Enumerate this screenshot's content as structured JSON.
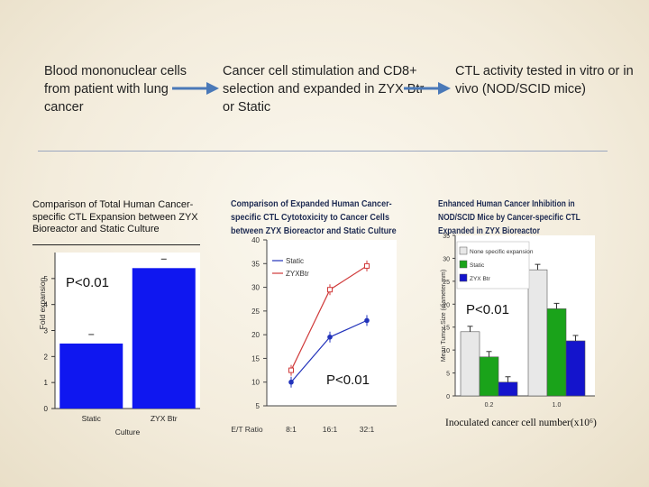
{
  "flow": {
    "step1": "Blood mononuclear cells  from patient with lung cancer",
    "step2": "Cancer cell stimulation and CD8+ selection and expanded in ZYX Btr or Static",
    "step3": "CTL activity tested in vitro or in vivo (NOD/SCID mice)",
    "arrow_color": "#4a79b8"
  },
  "chart_data": [
    {
      "type": "bar",
      "title": "Comparison of Total Human Cancer-specific CTL Expansion between ZYX Bioreactor and Static Culture",
      "categories": [
        "Static",
        "ZYX Btr"
      ],
      "values": [
        2.5,
        5.4
      ],
      "xlabel": "Culture",
      "ylabel": "Fold expansion",
      "ylim": [
        0,
        6
      ],
      "yticks": [
        "0",
        "1",
        "2",
        "3",
        "4",
        "5"
      ],
      "bar_color": "#0f17f0",
      "annotation": "P<0.01"
    },
    {
      "type": "line",
      "title": "Comparison of Expanded Human Cancer-specific CTL Cytotoxicity to Cancer Cells between ZYX Bioreactor and Static Culture",
      "categories": [
        "8:1",
        "16:1",
        "32:1"
      ],
      "xlabel": "E/T Ratio",
      "ylim": [
        5,
        40
      ],
      "yticks": [
        "5",
        "10",
        "15",
        "20",
        "25",
        "30",
        "35",
        "40"
      ],
      "series": [
        {
          "name": "Static",
          "values": [
            10,
            19.5,
            23
          ],
          "color": "#2233bb"
        },
        {
          "name": "ZYXBtr",
          "values": [
            12.5,
            29.5,
            34.5
          ],
          "color": "#d03a3a"
        }
      ],
      "annotation": "P<0.01"
    },
    {
      "type": "bar",
      "title": "Enhanced Human Cancer Inhibition in NOD/SCID Mice by Cancer-specific CTL Expanded in ZYX Bioreactor",
      "categories": [
        "0.2",
        "1.0"
      ],
      "xlabel": "Inoculated cancer cell number(x10⁶)",
      "ylabel": "Mean Tumor Size (diameter mm)",
      "ylim": [
        0,
        35
      ],
      "yticks": [
        "0",
        "5",
        "10",
        "15",
        "20",
        "25",
        "30",
        "35"
      ],
      "series": [
        {
          "name": "None specific expansion",
          "values": [
            14,
            27.5
          ],
          "color": "#e8e8e8"
        },
        {
          "name": "Static",
          "values": [
            8.5,
            19
          ],
          "color": "#1aa31a"
        },
        {
          "name": "ZYX Btr",
          "values": [
            3,
            12
          ],
          "color": "#1414cc"
        }
      ],
      "annotation": "P<0.01"
    }
  ]
}
